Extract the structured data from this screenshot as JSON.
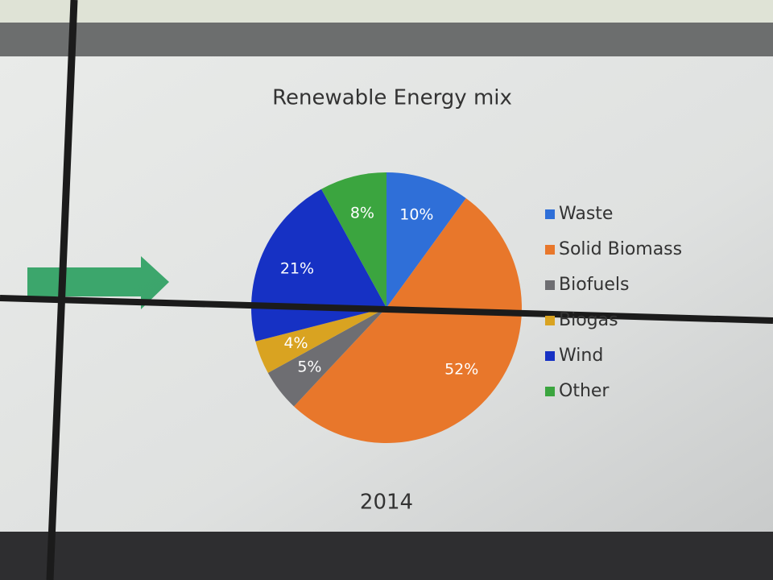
{
  "chart_data": {
    "type": "pie",
    "title": "Renewable Energy mix",
    "caption": "2014",
    "categories": [
      "Waste",
      "Solid Biomass",
      "Biofuels",
      "Biogas",
      "Wind",
      "Other"
    ],
    "values": [
      10,
      52,
      5,
      4,
      21,
      8
    ],
    "value_labels": [
      "10%",
      "52%",
      "5%",
      "4%",
      "21%",
      "8%"
    ],
    "colors": [
      "#2f6fd8",
      "#e8772b",
      "#6e6e72",
      "#d9a321",
      "#1631c4",
      "#3ba53f"
    ],
    "legend": "right"
  }
}
